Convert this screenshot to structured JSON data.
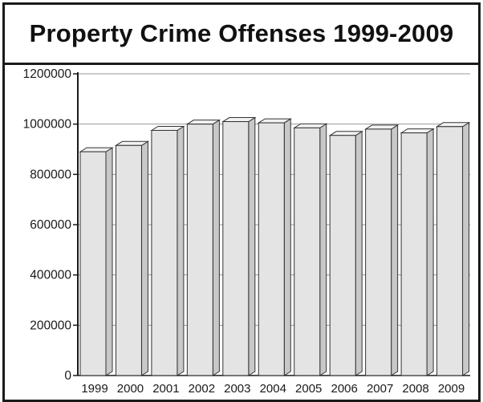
{
  "chart_data": {
    "type": "bar",
    "title": "Property Crime Offenses 1999-2009",
    "xlabel": "",
    "ylabel": "",
    "categories": [
      "1999",
      "2000",
      "2001",
      "2002",
      "2003",
      "2004",
      "2005",
      "2006",
      "2007",
      "2008",
      "2009"
    ],
    "values": [
      890000,
      915000,
      975000,
      1000000,
      1010000,
      1005000,
      985000,
      955000,
      980000,
      965000,
      990000
    ],
    "ylim": [
      0,
      1200000
    ],
    "yticks": [
      "0",
      "200000",
      "400000",
      "600000",
      "800000",
      "1000000",
      "1200000"
    ],
    "grid": true,
    "legend": "none",
    "colors": {
      "bar_face": "#e4e4e4",
      "bar_side": "#c8c8c8",
      "bar_top": "#f2f2f2",
      "outline": "#333333",
      "grid": "#9a9a9a"
    }
  }
}
